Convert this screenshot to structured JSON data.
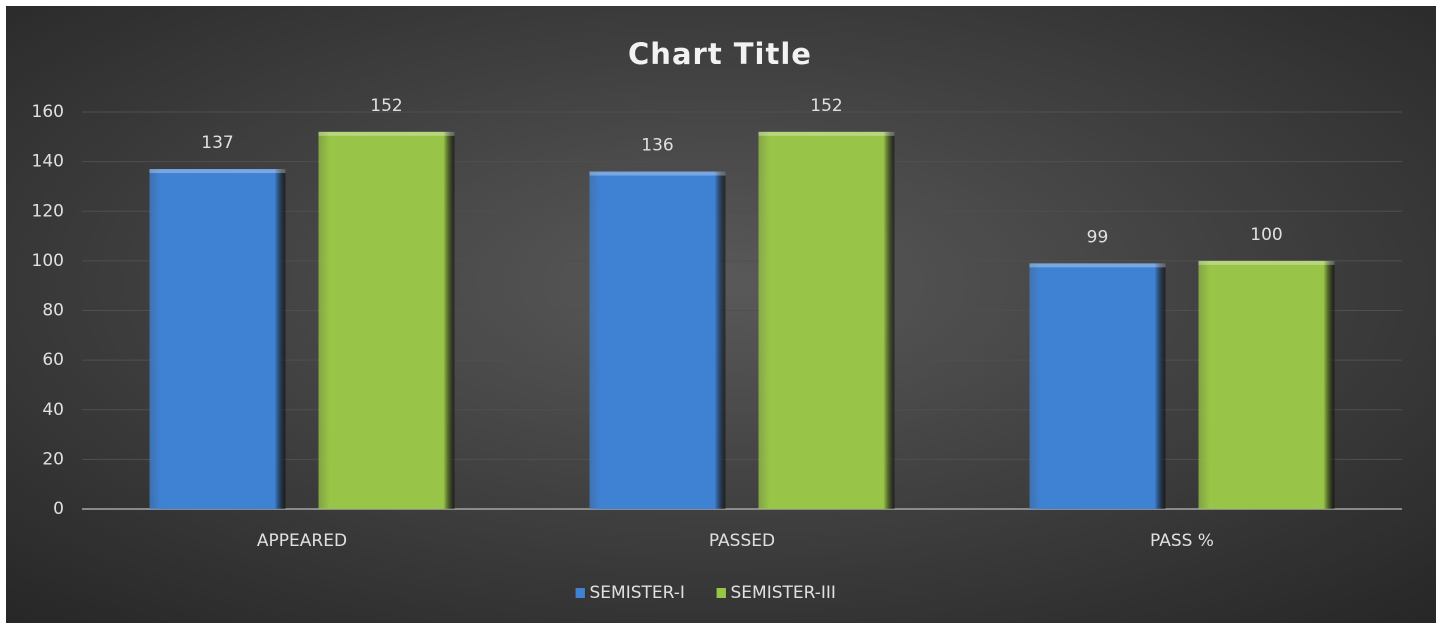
{
  "chart_data": {
    "type": "bar",
    "title": "Chart Title",
    "categories": [
      "APPEARED",
      "PASSED",
      "PASS %"
    ],
    "series": [
      {
        "name": "SEMISTER-I",
        "color": "#3f82d4",
        "values": [
          137,
          136,
          99
        ]
      },
      {
        "name": "SEMISTER-III",
        "color": "#98c447",
        "values": [
          152,
          152,
          100
        ]
      }
    ],
    "ylim": [
      0,
      160
    ],
    "yticks": [
      0,
      20,
      40,
      60,
      80,
      100,
      120,
      140,
      160
    ],
    "grid": true,
    "legend": "bottom"
  }
}
